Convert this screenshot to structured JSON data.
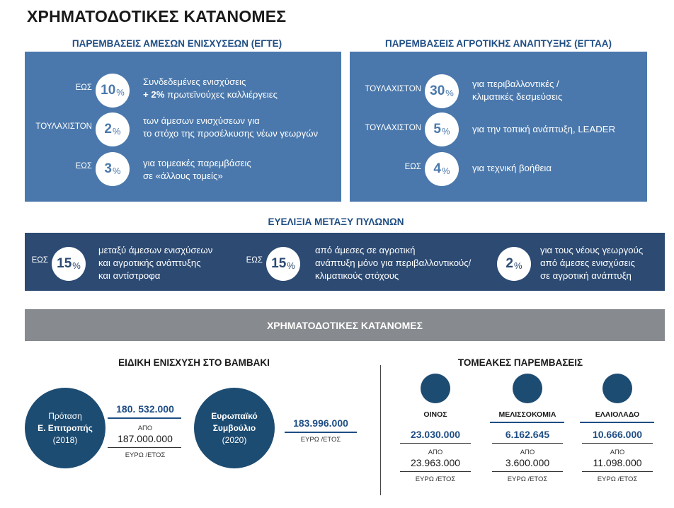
{
  "title": "ΧΡΗΜΑΤΟΔΟΤΙΚΕΣ ΚΑΤΑΝΟΜΕΣ",
  "egte": {
    "heading": "ΠΑΡΕΜΒΑΣΕΙΣ ΑΜΕΣΩΝ ΕΝΙΣΧΥΣΕΩΝ (ΕΓΤΕ)",
    "rows": [
      {
        "qualifier": "ΕΩΣ",
        "value": "10",
        "unit": "%",
        "line1": "Συνδεδεμένες ενισχύσεις",
        "line2_bold": "+ 2%",
        "line2": " πρωτεϊνούχες καλλιέργειες"
      },
      {
        "qualifier": "ΤΟΥΛΑΧΙΣΤΟΝ",
        "value": "2",
        "unit": "%",
        "line1": "των άμεσων ενισχύσεων για",
        "line2": "το στόχο της προσέλκυσης νέων γεωργών"
      },
      {
        "qualifier": "ΕΩΣ",
        "value": "3",
        "unit": "%",
        "line1": "για τομεακές παρεμβάσεις",
        "line2": "σε «άλλους τομείς»"
      }
    ]
  },
  "egtaa": {
    "heading": "ΠΑΡΕΜΒΑΣΕΙΣ ΑΓΡΟΤΙΚΗΣ ΑΝΑΠΤΥΞΗΣ (ΕΓΤΑΑ)",
    "rows": [
      {
        "qualifier": "ΤΟΥΛΑΧΙΣΤΟΝ",
        "value": "30",
        "unit": "%",
        "line1": "για περιβαλλοντικές /",
        "line2": "κλιματικές δεσμεύσεις"
      },
      {
        "qualifier": "ΤΟΥΛΑΧΙΣΤΟΝ",
        "value": "5",
        "unit": "%",
        "line1": "για την τοπική ανάπτυξη, LEADER"
      },
      {
        "qualifier": "ΕΩΣ",
        "value": "4",
        "unit": "%",
        "line1": "για τεχνική βοήθεια"
      }
    ]
  },
  "flexibility": {
    "heading": "ΕΥΕΛΙΞΙΑ ΜΕΤΑΞΥ ΠΥΛΩΝΩΝ",
    "items": [
      {
        "qualifier": "ΕΩΣ",
        "value": "15",
        "unit": "%",
        "line1": "μεταξύ άμεσων ενισχύσεων",
        "line2": "και αγροτικής ανάπτυξης",
        "line3": "και αντίστροφα"
      },
      {
        "qualifier": "ΕΩΣ",
        "value": "15",
        "unit": "%",
        "line1": "από άμεσες σε αγροτική",
        "line2": "ανάπτυξη μόνο για περιβαλλοντικούς/",
        "line3": "κλιματικούς στόχους"
      },
      {
        "qualifier": "",
        "value": "2",
        "unit": "%",
        "line1": "για τους νέους γεωργούς",
        "line2": "από άμεσες ενισχύσεις",
        "line3": "σε αγροτική ανάπτυξη"
      }
    ]
  },
  "banner": "ΧΡΗΜΑΤΟΔΟΤΙΚΕΣ ΚΑΤΑΝΟΜΕΣ",
  "cotton": {
    "heading": "ΕΙΔΙΚΗ ΕΝΙΣΧΥΣΗ ΣΤΟ ΒΑΜΒΑΚΙ",
    "commission": {
      "line1": "Πρόταση",
      "line2": "Ε. Επιτροπής",
      "line3": "(2018)",
      "amount": "180. 532.000",
      "from_label": "ΑΠΟ",
      "from_amount": "187.000.000",
      "unit": "ΕΥΡΩ /ΕΤΟΣ"
    },
    "council": {
      "line1": "Ευρωπαϊκό",
      "line2": "Συμβούλιο",
      "line3": "(2020)",
      "amount": "183.996.000",
      "unit": "ΕΥΡΩ /ΕΤΟΣ"
    }
  },
  "sectoral": {
    "heading": "ΤΟΜΕΑΚΕΣ ΠΑΡΕΜΒΑΣΕΙΣ",
    "items": [
      {
        "name": "ΟΙΝΟΣ",
        "amount": "23.030.000",
        "from_label": "ΑΠΟ",
        "from_amount": "23.963.000",
        "unit": "ΕΥΡΩ /ΕΤΟΣ"
      },
      {
        "name": "ΜΕΛΙΣΣΟΚΟΜΙΑ",
        "amount": "6.162.645",
        "from_label": "ΑΠΟ",
        "from_amount": "3.600.000",
        "unit": "ΕΥΡΩ /ΕΤΟΣ"
      },
      {
        "name": "ΕΛΑΙΟΛΑΔΟ",
        "amount": "10.666.000",
        "from_label": "ΑΠΟ",
        "from_amount": "11.098.000",
        "unit": "ΕΥΡΩ /ΕΤΟΣ"
      }
    ]
  },
  "colors": {
    "panel": "#4a78ac",
    "panel_dark": "#2c4a72",
    "navy_circle": "#1d4c72",
    "banner": "#878a8e",
    "heading": "#1f4e84"
  }
}
